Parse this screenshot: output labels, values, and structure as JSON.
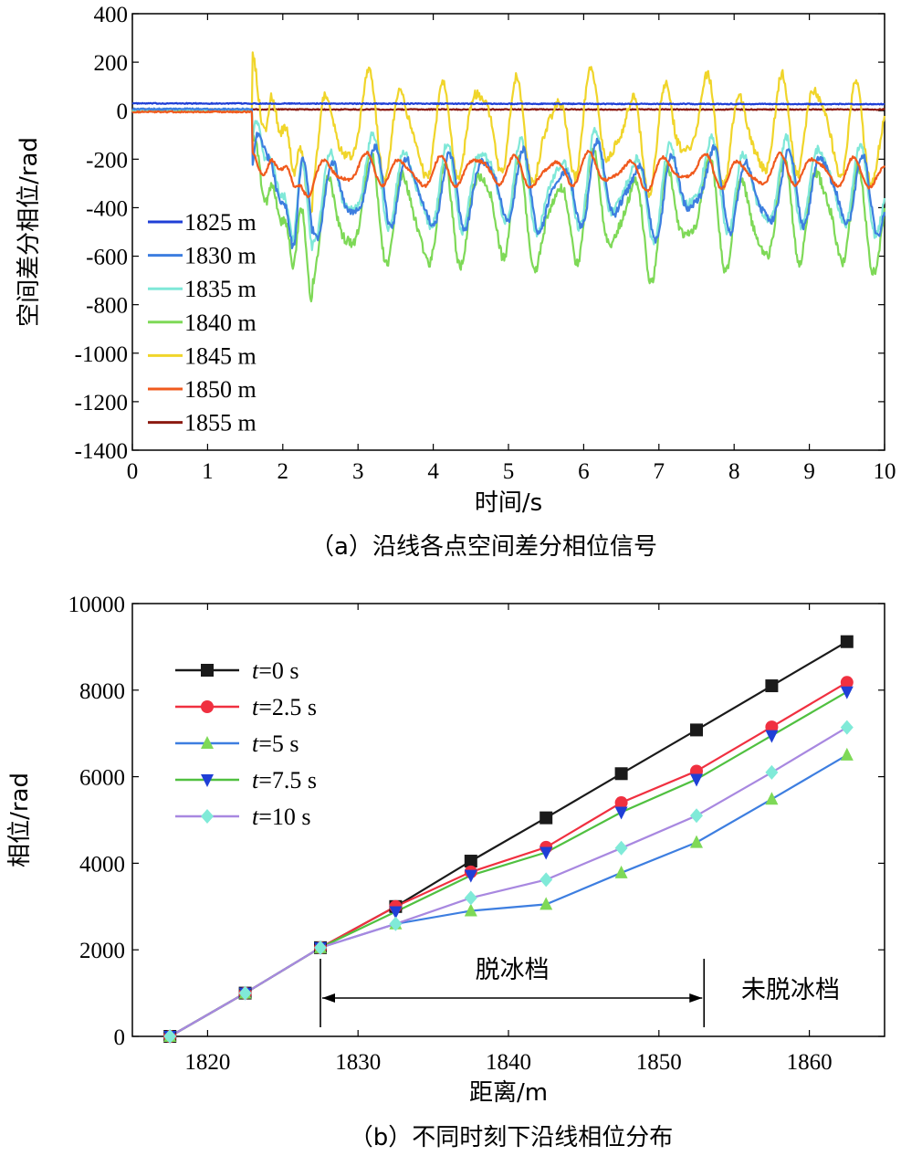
{
  "chart_data": [
    {
      "type": "line",
      "caption": "（a）沿线各点空间差分相位信号",
      "xlabel": "时间/s",
      "ylabel": "空间差分相位/rad",
      "xlim": [
        0,
        10
      ],
      "ylim": [
        -1400,
        400
      ],
      "xticks": [
        "0",
        "1",
        "2",
        "3",
        "4",
        "5",
        "6",
        "7",
        "8",
        "9",
        "10"
      ],
      "yticks": [
        "400",
        "200",
        "0",
        "-200",
        "-400",
        "-600",
        "-800",
        "-1000",
        "-1200",
        "-1400"
      ],
      "legend_position": "left",
      "series": [
        {
          "name": "1825 m",
          "color": "#1f3fd6",
          "profile": "flat",
          "base": 30
        },
        {
          "name": "1830 m",
          "color": "#3d7ee0",
          "profile": "oscillating",
          "mean": -330,
          "amp": 200
        },
        {
          "name": "1835 m",
          "color": "#7fe8d8",
          "profile": "oscillating",
          "mean": -310,
          "amp": 230
        },
        {
          "name": "1840 m",
          "color": "#7ed957",
          "profile": "oscillating",
          "mean": -430,
          "amp": 270
        },
        {
          "name": "1845 m",
          "color": "#f0d52a",
          "profile": "oscillating",
          "mean": -80,
          "amp": 260
        },
        {
          "name": "1850 m",
          "color": "#f05a1e",
          "profile": "oscillating",
          "mean": -250,
          "amp": 80
        },
        {
          "name": "1855 m",
          "color": "#8b1a10",
          "profile": "flat",
          "base": 5
        }
      ]
    },
    {
      "type": "line",
      "caption": "（b）不同时刻下沿线相位分布",
      "xlabel": "距离/m",
      "ylabel": "相位/rad",
      "xlim": [
        1815,
        1865
      ],
      "ylim": [
        0,
        10000
      ],
      "xticks": [
        "1820",
        "1830",
        "1840",
        "1850",
        "1860"
      ],
      "yticks": [
        "0",
        "2000",
        "4000",
        "6000",
        "8000",
        "10000"
      ],
      "legend_position": "top-left",
      "x": [
        1817.5,
        1822.5,
        1827.5,
        1832.5,
        1837.5,
        1842.5,
        1847.5,
        1852.5,
        1857.5,
        1862.5
      ],
      "series": [
        {
          "name_prefix": "t",
          "name_suffix": "=0 s",
          "color": "#1a1a1a",
          "marker": "square",
          "values": [
            0,
            1000,
            2050,
            3000,
            4050,
            5050,
            6070,
            7080,
            8100,
            9120
          ]
        },
        {
          "name_prefix": "t",
          "name_suffix": "=2.5 s",
          "color": "#f03040",
          "marker": "circle",
          "values": [
            0,
            1000,
            2050,
            3000,
            3800,
            4370,
            5400,
            6130,
            7150,
            8180
          ]
        },
        {
          "name_prefix": "t",
          "name_suffix": "=5 s",
          "color": "#3d7ee0",
          "marker": "triangle-up",
          "marker_color": "#7ed957",
          "values": [
            0,
            1000,
            2050,
            2600,
            2900,
            3050,
            3780,
            4480,
            5480,
            6500
          ]
        },
        {
          "name_prefix": "t",
          "name_suffix": "=7.5 s",
          "color": "#50c040",
          "marker": "triangle-down",
          "marker_color": "#1f3fd6",
          "values": [
            0,
            1000,
            2050,
            2880,
            3720,
            4250,
            5180,
            5940,
            6950,
            7960
          ]
        },
        {
          "name_prefix": "t",
          "name_suffix": "=10 s",
          "color": "#a888e0",
          "marker": "diamond",
          "marker_color": "#80ead8",
          "values": [
            0,
            1000,
            2050,
            2600,
            3200,
            3620,
            4350,
            5100,
            6100,
            7140
          ]
        }
      ],
      "annotations": {
        "deiced_label": "脱冰档",
        "not_deiced_label": "未脱冰档",
        "range": [
          1827.5,
          1853
        ]
      }
    }
  ]
}
